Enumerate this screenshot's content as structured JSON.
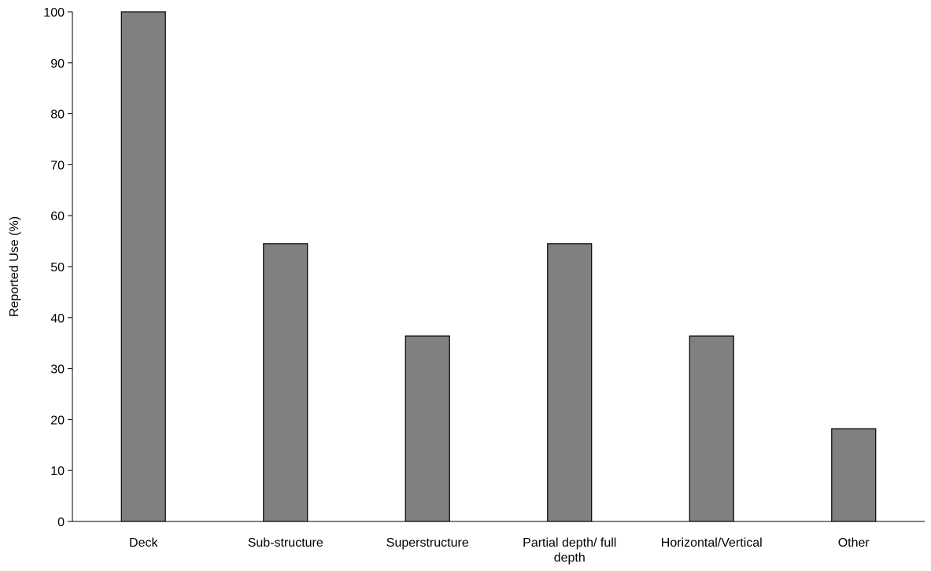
{
  "chart_data": {
    "type": "bar",
    "categories": [
      "Deck",
      "Sub-structure",
      "Superstructure",
      "Partial depth/ full depth",
      "Horizontal/Vertical",
      "Other"
    ],
    "category_label_lines": [
      [
        "Deck"
      ],
      [
        "Sub-structure"
      ],
      [
        "Superstructure"
      ],
      [
        "Partial depth/ full",
        "depth"
      ],
      [
        "Horizontal/Vertical"
      ],
      [
        "Other"
      ]
    ],
    "values": [
      100,
      54.5,
      36.4,
      54.5,
      36.4,
      18.2
    ],
    "title": "",
    "xlabel": "",
    "ylabel": "Reported Use (%)",
    "ylim": [
      0,
      100
    ],
    "yticks": [
      0,
      10,
      20,
      30,
      40,
      50,
      60,
      70,
      80,
      90,
      100
    ],
    "grid": false,
    "legend": "none",
    "bar_color": "#808080",
    "bar_edge_color": "#000000"
  }
}
